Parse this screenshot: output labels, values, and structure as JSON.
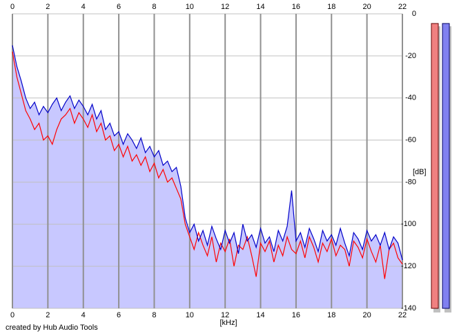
{
  "chart_data": {
    "type": "line",
    "x_label": "[kHz]",
    "y_label": "[dB]",
    "footer": "created by Hub Audio Tools",
    "xlim": [
      0,
      22
    ],
    "xticks": [
      0,
      2,
      4,
      6,
      8,
      10,
      12,
      14,
      16,
      18,
      20,
      22
    ],
    "ylim": [
      -140,
      0
    ],
    "yticks": [
      0,
      -20,
      -40,
      -60,
      -80,
      -100,
      -120,
      -140
    ],
    "grid": true,
    "fill_color": "#c8c8ff",
    "x": [
      0,
      0.25,
      0.5,
      0.75,
      1,
      1.25,
      1.5,
      1.75,
      2,
      2.25,
      2.5,
      2.75,
      3,
      3.25,
      3.5,
      3.75,
      4,
      4.25,
      4.5,
      4.75,
      5,
      5.25,
      5.5,
      5.75,
      6,
      6.25,
      6.5,
      6.75,
      7,
      7.25,
      7.5,
      7.75,
      8,
      8.25,
      8.5,
      8.75,
      9,
      9.25,
      9.5,
      9.75,
      10,
      10.25,
      10.5,
      10.75,
      11,
      11.25,
      11.5,
      11.75,
      12,
      12.25,
      12.5,
      12.75,
      13,
      13.25,
      13.5,
      13.75,
      14,
      14.25,
      14.5,
      14.75,
      15,
      15.25,
      15.5,
      15.75,
      16,
      16.25,
      16.5,
      16.75,
      17,
      17.25,
      17.5,
      17.75,
      18,
      18.25,
      18.5,
      18.75,
      19,
      19.25,
      19.5,
      19.75,
      20,
      20.25,
      20.5,
      20.75,
      21,
      21.25,
      21.5,
      21.75,
      22
    ],
    "series": [
      {
        "color": "#ff0000",
        "values": [
          -18,
          -30,
          -38,
          -46,
          -50,
          -55,
          -52,
          -60,
          -58,
          -62,
          -55,
          -50,
          -48,
          -45,
          -52,
          -47,
          -50,
          -54,
          -48,
          -56,
          -52,
          -60,
          -58,
          -65,
          -62,
          -68,
          -63,
          -70,
          -67,
          -72,
          -68,
          -75,
          -71,
          -78,
          -74,
          -80,
          -78,
          -83,
          -88,
          -100,
          -106,
          -112,
          -104,
          -110,
          -115,
          -106,
          -118,
          -109,
          -113,
          -107,
          -120,
          -110,
          -112,
          -106,
          -115,
          -125,
          -109,
          -113,
          -108,
          -118,
          -110,
          -115,
          -106,
          -112,
          -114,
          -108,
          -116,
          -106,
          -111,
          -118,
          -109,
          -113,
          -107,
          -115,
          -110,
          -112,
          -120,
          -108,
          -111,
          -116,
          -107,
          -113,
          -118,
          -110,
          -126,
          -112,
          -109,
          -116,
          -119
        ]
      },
      {
        "color": "#0000c8",
        "values": [
          -15,
          -25,
          -32,
          -40,
          -45,
          -42,
          -48,
          -44,
          -47,
          -43,
          -40,
          -46,
          -42,
          -39,
          -45,
          -41,
          -44,
          -48,
          -43,
          -50,
          -46,
          -55,
          -52,
          -58,
          -56,
          -62,
          -57,
          -60,
          -64,
          -59,
          -66,
          -63,
          -68,
          -65,
          -72,
          -70,
          -75,
          -73,
          -82,
          -97,
          -104,
          -100,
          -108,
          -103,
          -110,
          -101,
          -107,
          -112,
          -103,
          -109,
          -104,
          -114,
          -100,
          -108,
          -105,
          -111,
          -102,
          -109,
          -106,
          -113,
          -103,
          -108,
          -101,
          -84,
          -108,
          -104,
          -111,
          -102,
          -107,
          -113,
          -103,
          -108,
          -105,
          -110,
          -102,
          -109,
          -115,
          -104,
          -107,
          -112,
          -103,
          -108,
          -105,
          -110,
          -104,
          -112,
          -106,
          -109,
          -117
        ]
      }
    ]
  }
}
